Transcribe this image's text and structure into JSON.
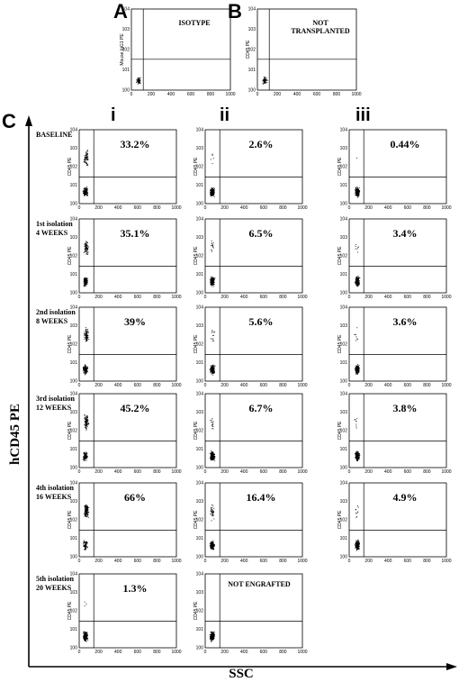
{
  "panel_labels": {
    "A": "A",
    "B": "B",
    "C": "C"
  },
  "column_labels": [
    "i",
    "ii",
    "iii"
  ],
  "row_labels": [
    {
      "line1": "BASELINE",
      "line2": ""
    },
    {
      "line1": "1st isolation",
      "line2": "4 WEEKS"
    },
    {
      "line1": "2nd isolation",
      "line2": "8 WEEKS"
    },
    {
      "line1": "3rd isolation",
      "line2": "12 WEEKS"
    },
    {
      "line1": "4th isolation",
      "line2": "16 WEEKS"
    },
    {
      "line1": "5th isolation",
      "line2": "20 WEEKS"
    }
  ],
  "top_plots": [
    {
      "id": "A",
      "ylabel": "Mouse IgG1 PE",
      "note_lines": [
        "ISOTYPE"
      ],
      "x_ticks": [
        "0",
        "200",
        "400",
        "600",
        "800",
        "1000"
      ],
      "y_ticks": [
        "10^0",
        "10^1",
        "10^2",
        "10^3",
        "10^4"
      ]
    },
    {
      "id": "B",
      "ylabel": "CD45 PE",
      "note_lines": [
        "NOT",
        "TRANSPLANTED"
      ],
      "x_ticks": [
        "0",
        "200",
        "400",
        "600",
        "800",
        "1000"
      ],
      "y_ticks": [
        "10^0",
        "10^1",
        "10^2",
        "10^3",
        "10^4"
      ]
    }
  ],
  "flow_plots": {
    "x_ticks": [
      "0",
      "200",
      "400",
      "600",
      "800",
      "1000"
    ],
    "y_ticks": [
      "10^0",
      "10^1",
      "10^2",
      "10^3",
      "10^4"
    ],
    "ylabel": "CD45 PE",
    "columns": [
      [
        "33.2%",
        "35.1%",
        "39%",
        "45.2%",
        "66%",
        "1.3%"
      ],
      [
        "2.6%",
        "6.5%",
        "5.6%",
        "6.7%",
        "16.4%",
        "NOT ENGRAFTED"
      ],
      [
        "0.44%",
        "3.4%",
        "3.6%",
        "3.8%",
        "4.9%"
      ]
    ]
  },
  "axis_titles": {
    "y": "hCD45 PE",
    "x": "SSC"
  }
}
